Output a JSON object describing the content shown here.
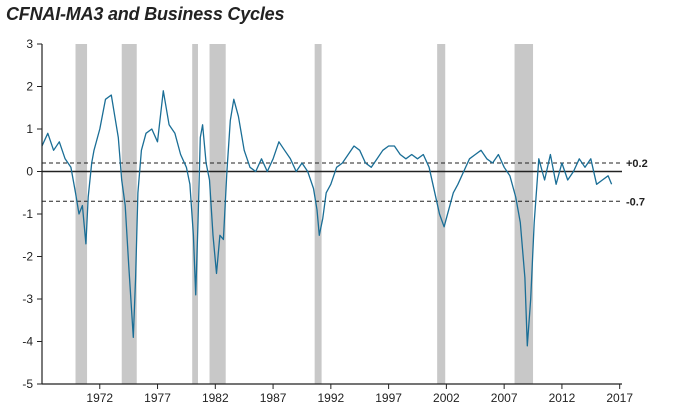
{
  "chart_data": {
    "type": "line",
    "title": "CFNAI-MA3 and Business Cycles",
    "xlabel": "",
    "ylabel": "",
    "xlim": [
      1967.0,
      2017.2
    ],
    "ylim": [
      -5,
      3
    ],
    "yticks": [
      3,
      2,
      1,
      0,
      -1,
      -2,
      -3,
      -4,
      -5
    ],
    "xticks": [
      1972,
      1977,
      1982,
      1987,
      1992,
      1997,
      2002,
      2007,
      2012,
      2017
    ],
    "zero_line": 0,
    "reference_lines": [
      {
        "value": 0.2,
        "label": "+0.2",
        "style": "dashed"
      },
      {
        "value": -0.7,
        "label": "-0.7",
        "style": "dashed"
      }
    ],
    "recessions": [
      {
        "start": 1969.9,
        "end": 1970.9
      },
      {
        "start": 1973.9,
        "end": 1975.2
      },
      {
        "start": 1980.0,
        "end": 1980.5
      },
      {
        "start": 1981.5,
        "end": 1982.9
      },
      {
        "start": 1990.6,
        "end": 1991.2
      },
      {
        "start": 2001.2,
        "end": 2001.9
      },
      {
        "start": 2007.9,
        "end": 2009.5
      }
    ],
    "colors": {
      "line": "#1a6e96",
      "recession": "#c8c8c8",
      "axis": "#222222"
    },
    "series": [
      {
        "name": "CFNAI-MA3",
        "x": [
          1967.0,
          1967.5,
          1968.0,
          1968.5,
          1969.0,
          1969.5,
          1969.9,
          1970.2,
          1970.5,
          1970.8,
          1971.0,
          1971.3,
          1971.5,
          1972.0,
          1972.5,
          1973.0,
          1973.3,
          1973.6,
          1973.9,
          1974.2,
          1974.5,
          1974.9,
          1975.1,
          1975.3,
          1975.6,
          1976.0,
          1976.5,
          1977.0,
          1977.5,
          1978.0,
          1978.5,
          1979.0,
          1979.5,
          1979.8,
          1980.1,
          1980.3,
          1980.5,
          1980.7,
          1980.9,
          1981.2,
          1981.5,
          1981.8,
          1982.1,
          1982.4,
          1982.7,
          1983.0,
          1983.3,
          1983.6,
          1984.0,
          1984.5,
          1985.0,
          1985.5,
          1986.0,
          1986.5,
          1987.0,
          1987.5,
          1988.0,
          1988.5,
          1989.0,
          1989.5,
          1990.0,
          1990.5,
          1990.8,
          1991.0,
          1991.3,
          1991.6,
          1992.0,
          1992.5,
          1993.0,
          1993.5,
          1994.0,
          1994.5,
          1995.0,
          1995.5,
          1996.0,
          1996.5,
          1997.0,
          1997.5,
          1998.0,
          1998.5,
          1999.0,
          1999.5,
          2000.0,
          2000.5,
          2001.0,
          2001.4,
          2001.8,
          2002.2,
          2002.6,
          2003.0,
          2003.5,
          2004.0,
          2004.5,
          2005.0,
          2005.5,
          2006.0,
          2006.5,
          2007.0,
          2007.5,
          2008.0,
          2008.4,
          2008.8,
          2009.0,
          2009.3,
          2009.6,
          2010.0,
          2010.5,
          2011.0,
          2011.5,
          2012.0,
          2012.5,
          2013.0,
          2013.5,
          2014.0,
          2014.5,
          2015.0,
          2015.5,
          2016.0,
          2016.3
        ],
        "y": [
          0.6,
          0.9,
          0.5,
          0.7,
          0.3,
          0.1,
          -0.5,
          -1.0,
          -0.8,
          -1.7,
          -0.6,
          0.2,
          0.5,
          1.0,
          1.7,
          1.8,
          1.3,
          0.8,
          -0.2,
          -0.8,
          -2.2,
          -3.9,
          -2.5,
          -0.5,
          0.5,
          0.9,
          1.0,
          0.7,
          1.9,
          1.1,
          0.9,
          0.4,
          0.1,
          -0.3,
          -1.5,
          -2.9,
          -1.2,
          0.8,
          1.1,
          0.2,
          -0.2,
          -1.5,
          -2.4,
          -1.5,
          -1.6,
          0.0,
          1.2,
          1.7,
          1.3,
          0.5,
          0.1,
          0.0,
          0.3,
          0.0,
          0.3,
          0.7,
          0.5,
          0.3,
          0.0,
          0.2,
          0.0,
          -0.4,
          -0.9,
          -1.5,
          -1.1,
          -0.5,
          -0.3,
          0.1,
          0.2,
          0.4,
          0.6,
          0.5,
          0.2,
          0.1,
          0.3,
          0.5,
          0.6,
          0.6,
          0.4,
          0.3,
          0.4,
          0.3,
          0.4,
          0.1,
          -0.5,
          -1.0,
          -1.3,
          -0.9,
          -0.5,
          -0.3,
          0.0,
          0.3,
          0.4,
          0.5,
          0.3,
          0.2,
          0.4,
          0.1,
          -0.1,
          -0.6,
          -1.2,
          -2.5,
          -4.1,
          -3.0,
          -1.2,
          0.3,
          -0.2,
          0.4,
          -0.3,
          0.2,
          -0.2,
          0.0,
          0.3,
          0.1,
          0.3,
          -0.3,
          -0.2,
          -0.1,
          -0.3
        ]
      }
    ]
  }
}
